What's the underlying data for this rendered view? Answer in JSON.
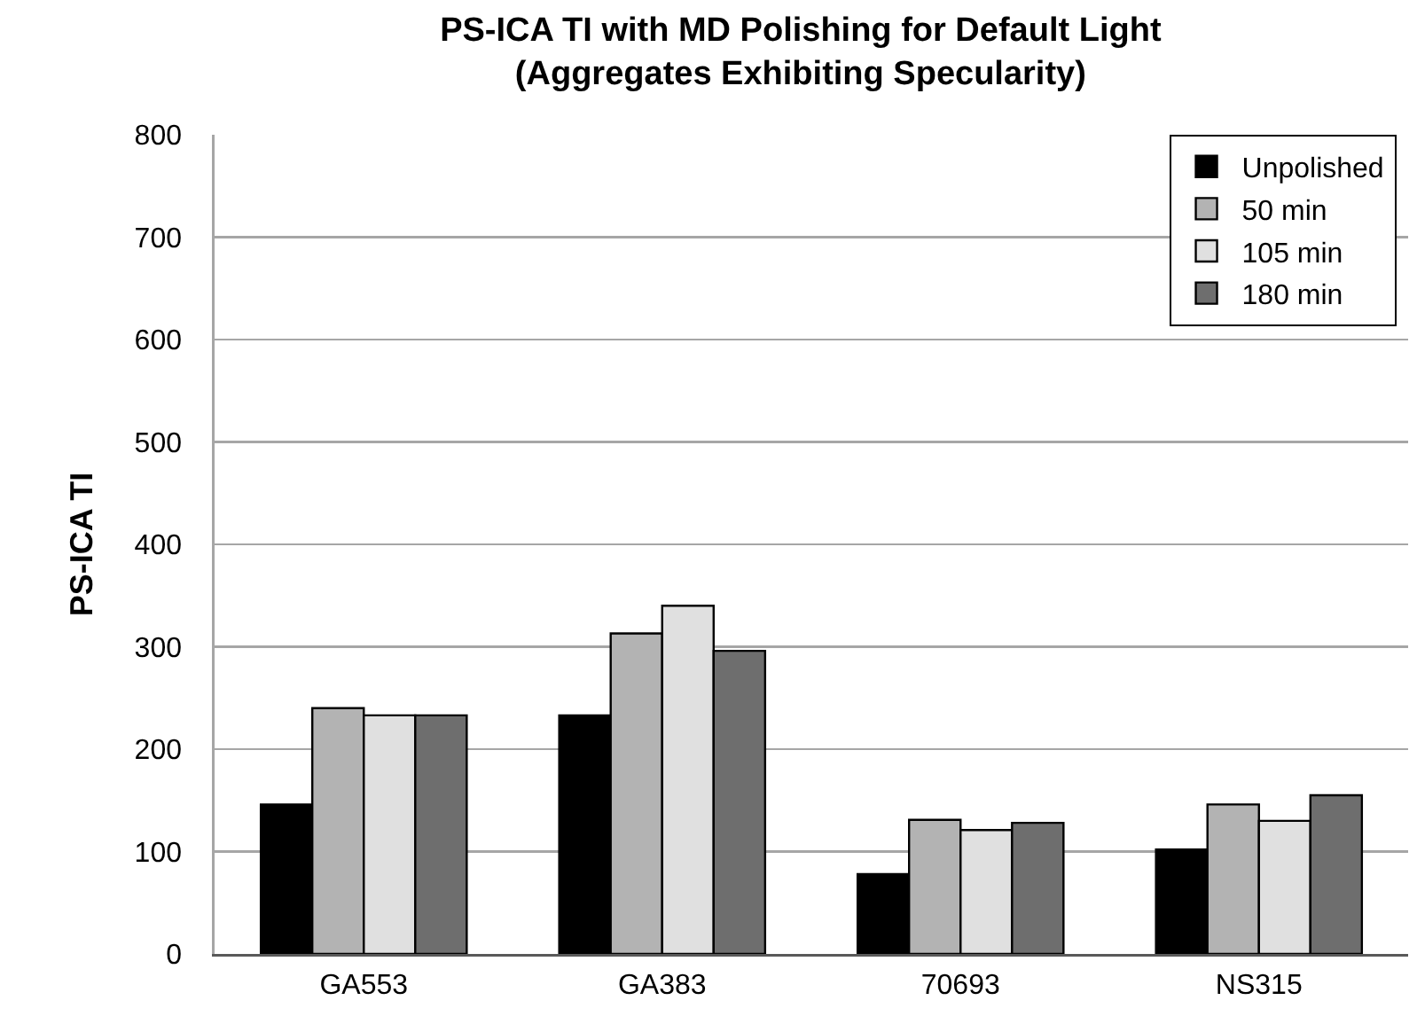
{
  "chart_data": {
    "type": "bar",
    "title": "PS-ICA TI with MD Polishing for Default Light\n(Aggregates Exhibiting Specularity)",
    "ylabel": "PS-ICA TI",
    "categories": [
      "GA553",
      "GA383",
      "70693",
      "NS315"
    ],
    "series": [
      {
        "name": "Unpolished",
        "color": "#000000",
        "values": [
          146,
          233,
          78,
          102
        ]
      },
      {
        "name": "50 min",
        "color": "#b3b3b3",
        "values": [
          240,
          313,
          131,
          146
        ]
      },
      {
        "name": "105 min",
        "color": "#e0e0e0",
        "values": [
          233,
          340,
          121,
          130
        ]
      },
      {
        "name": "180 min",
        "color": "#6e6e6e",
        "values": [
          233,
          296,
          128,
          155
        ]
      }
    ],
    "ylim": [
      0,
      800
    ],
    "yticks": [
      0,
      100,
      200,
      300,
      400,
      500,
      600,
      700,
      800
    ],
    "grid": "y",
    "legend": "top right"
  }
}
